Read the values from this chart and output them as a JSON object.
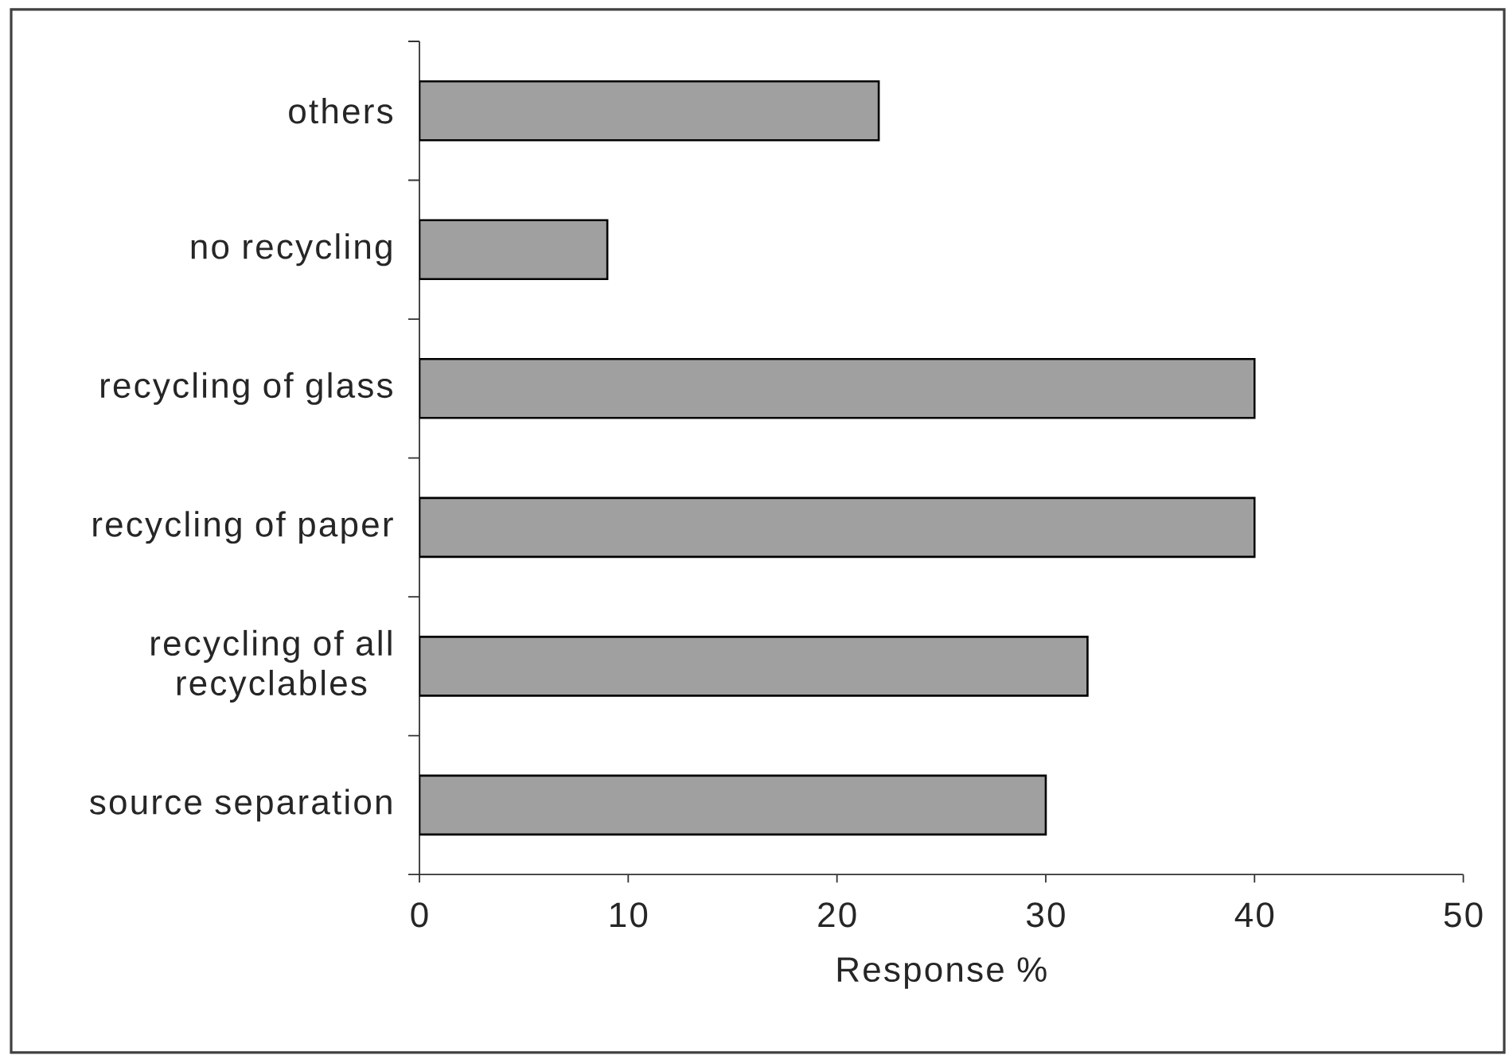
{
  "chart_data": {
    "type": "bar",
    "orientation": "horizontal",
    "categories": [
      "others",
      "no recycling",
      "recycling of glass",
      "recycling of paper",
      "recycling of all recyclables",
      "source separation"
    ],
    "values": [
      22,
      9,
      40,
      40,
      32,
      30
    ],
    "color": "#a0a0a0",
    "xlabel": "Response %",
    "xlim": [
      0,
      50
    ],
    "xticks": [
      0,
      10,
      20,
      30,
      40,
      50
    ]
  }
}
